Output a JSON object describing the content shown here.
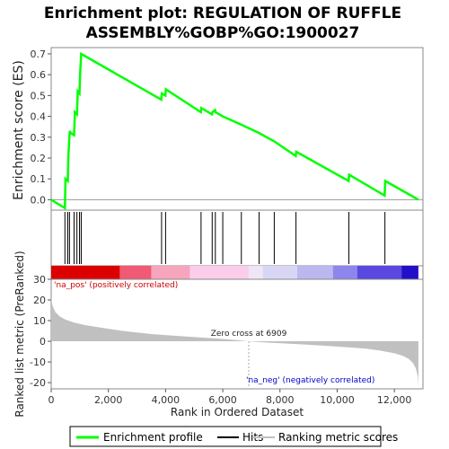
{
  "chart_data": {
    "type": "line",
    "title_line1": "Enrichment plot: REGULATION OF RUFFLE",
    "title_line2": "ASSEMBLY%GOBP%GO:1900027",
    "es_panel": {
      "ylabel": "Enrichment score (ES)",
      "ylim": [
        -0.05,
        0.73
      ],
      "yticks": [
        0.0,
        0.1,
        0.2,
        0.3,
        0.4,
        0.5,
        0.6,
        0.7
      ],
      "ytick_labels": [
        "0.0",
        "0.1",
        "0.2",
        "0.3",
        "0.4",
        "0.5",
        "0.6",
        "0.7"
      ],
      "series": [
        {
          "name": "Enrichment profile",
          "color": "#00ff00",
          "x": [
            0,
            480,
            500,
            580,
            600,
            650,
            680,
            800,
            830,
            900,
            930,
            990,
            1010,
            1050,
            3850,
            3870,
            3990,
            4010,
            5230,
            5250,
            5620,
            5640,
            5730,
            5750,
            6000,
            6650,
            7270,
            7800,
            8550,
            8570,
            10400,
            10420,
            11660,
            11680,
            12840
          ],
          "y": [
            0.0,
            -0.04,
            0.1,
            0.09,
            0.21,
            0.33,
            0.32,
            0.31,
            0.42,
            0.41,
            0.52,
            0.51,
            0.6,
            0.7,
            0.48,
            0.51,
            0.5,
            0.53,
            0.42,
            0.44,
            0.41,
            0.42,
            0.43,
            0.42,
            0.4,
            0.36,
            0.32,
            0.28,
            0.21,
            0.23,
            0.09,
            0.12,
            0.02,
            0.09,
            0.0
          ]
        }
      ]
    },
    "hits_panel": {
      "hit_positions": [
        480,
        580,
        640,
        800,
        900,
        990,
        1050,
        3860,
        4000,
        5240,
        5630,
        5740,
        6000,
        6650,
        7270,
        7800,
        8560,
        10410,
        11670
      ]
    },
    "colorbar": {
      "segments": [
        {
          "x0": 0,
          "x1": 2400,
          "color": "#dd0000"
        },
        {
          "x0": 2400,
          "x1": 3500,
          "color": "#f05a75"
        },
        {
          "x0": 3500,
          "x1": 4850,
          "color": "#f7a5bd"
        },
        {
          "x0": 4850,
          "x1": 6909,
          "color": "#fbcdeb"
        },
        {
          "x0": 6909,
          "x1": 7400,
          "color": "#efe6f5"
        },
        {
          "x0": 7400,
          "x1": 8600,
          "color": "#d9d6f5"
        },
        {
          "x0": 8600,
          "x1": 9850,
          "color": "#bbb8ef"
        },
        {
          "x0": 9850,
          "x1": 10700,
          "color": "#8d86ec"
        },
        {
          "x0": 10700,
          "x1": 12250,
          "color": "#5a48e0"
        },
        {
          "x0": 12250,
          "x1": 12840,
          "color": "#2210c8"
        }
      ]
    },
    "metric_panel": {
      "ylabel": "Ranked list metric (PreRanked)",
      "ylim": [
        -23,
        30
      ],
      "yticks": [
        -20,
        -10,
        0,
        10,
        20,
        30
      ],
      "ytick_labels": [
        "-20",
        "-10",
        "0",
        "10",
        "20",
        "30"
      ],
      "xlabel": "Rank in Ordered Dataset",
      "xlim": [
        0,
        13000
      ],
      "xticks": [
        0,
        2000,
        4000,
        6000,
        8000,
        10000,
        12000
      ],
      "xtick_labels": [
        "0",
        "2,000",
        "4,000",
        "6,000",
        "8,000",
        "10,000",
        "12,000"
      ],
      "profile_x": [
        0,
        50,
        150,
        300,
        500,
        800,
        1200,
        1800,
        2500,
        3500,
        4500,
        5500,
        6500,
        6909,
        7500,
        8500,
        9500,
        10500,
        11000,
        11500,
        12000,
        12300,
        12500,
        12650,
        12750,
        12820,
        12840
      ],
      "profile_y": [
        21,
        17,
        14,
        12,
        10.5,
        9,
        7.8,
        6.5,
        5,
        3.5,
        2.5,
        1.6,
        0.6,
        0,
        -0.6,
        -1.3,
        -2.1,
        -3,
        -3.6,
        -4.5,
        -5.8,
        -7,
        -8.5,
        -10.5,
        -13,
        -17,
        -22
      ],
      "fill_color": "#c0c0c0",
      "zero_cross": 6909,
      "zero_cross_label": "Zero cross at 6909",
      "pos_label": "'na_pos' (positively correlated)",
      "neg_label": "'na_neg' (negatively correlated)",
      "pos_color": "#cc0000",
      "neg_color": "#0000cc"
    },
    "legend": [
      {
        "label": "Enrichment profile",
        "color": "#00ff00"
      },
      {
        "label": "Hits",
        "color": "#000000"
      },
      {
        "label": "Ranking metric scores",
        "color": "#c0c0c0"
      }
    ]
  }
}
